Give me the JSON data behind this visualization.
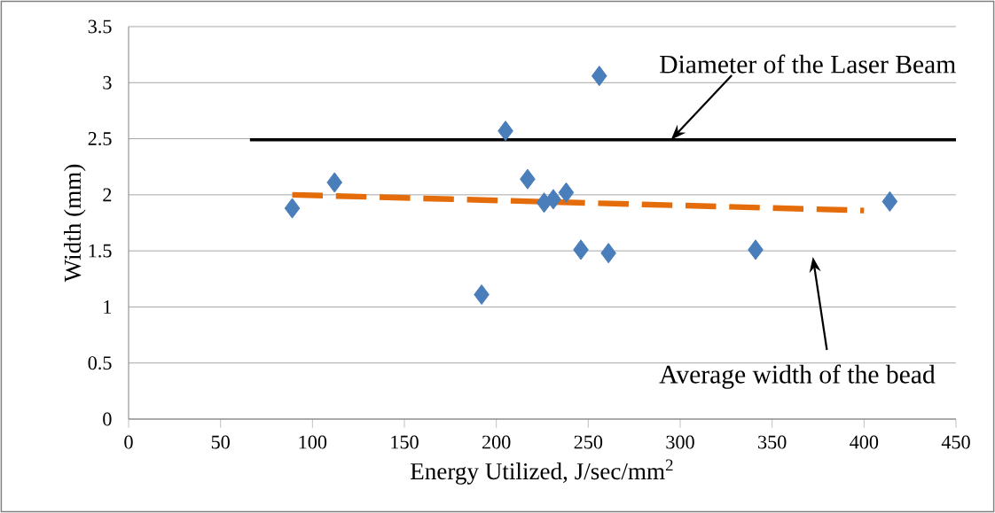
{
  "chart_data": {
    "type": "scatter",
    "xlabel": "Energy Utilized, J/sec/mm$^{2}$",
    "ylabel": "Width (mm)",
    "xlim": [
      0,
      450
    ],
    "xticks": [
      0,
      50,
      100,
      150,
      200,
      250,
      300,
      350,
      400,
      450
    ],
    "ylim": [
      0,
      3.5
    ],
    "yticks": [
      0,
      0.5,
      1,
      1.5,
      2,
      2.5,
      3,
      3.5
    ],
    "grid": "y",
    "marker": "diamond",
    "series": [
      {
        "color": "#4a7ebb",
        "x": [
          89,
          112,
          192,
          205,
          217,
          226,
          231,
          238,
          246,
          256,
          261,
          341,
          414
        ],
        "values": [
          1.88,
          2.11,
          1.11,
          2.57,
          2.14,
          1.93,
          1.96,
          2.02,
          1.51,
          3.06,
          1.48,
          1.51,
          1.94
        ]
      },
      {
        "type": "line",
        "color": "#e46c0a",
        "line_style": "dashed",
        "marker": "none",
        "x": [
          89,
          400
        ],
        "values": [
          2.0,
          1.86
        ]
      },
      {
        "type": "line",
        "color": "#000000",
        "line_style": "solid",
        "marker": "none",
        "x": [
          66,
          450
        ],
        "values": [
          2.49,
          2.49
        ]
      }
    ],
    "annotations": [
      {
        "text": "Diameter of the Laser Beam",
        "x": 295,
        "y": 2.49
      },
      "Average width of the bead"
    ]
  }
}
